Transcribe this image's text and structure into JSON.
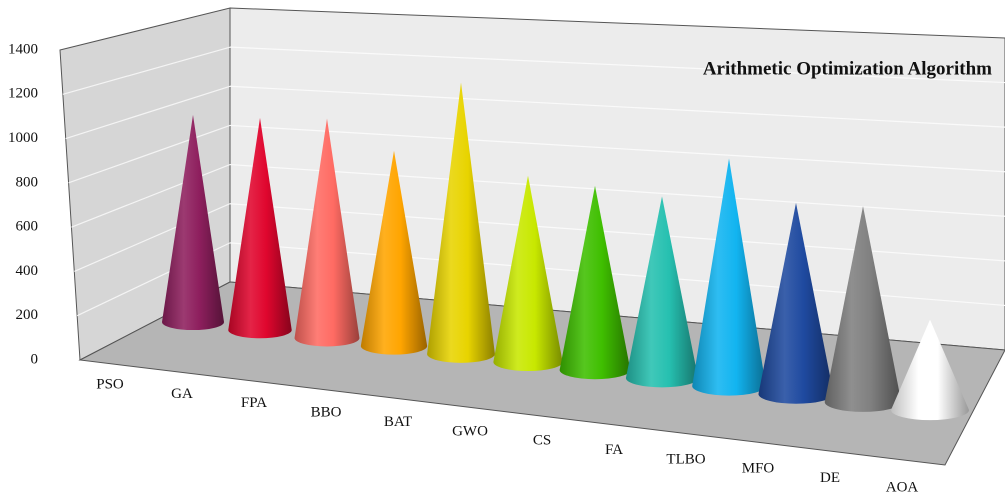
{
  "chart_data": {
    "type": "cone",
    "title": "Arithmetic Optimization Algorithm",
    "categories": [
      "PSO",
      "GA",
      "FPA",
      "BBO",
      "BAT",
      "GWO",
      "CS",
      "FA",
      "TLBO",
      "MFO",
      "DE",
      "AOA"
    ],
    "values": [
      950,
      960,
      980,
      860,
      1180,
      800,
      780,
      760,
      940,
      780,
      790,
      360
    ],
    "colors": [
      "#8e1f5e",
      "#e0062e",
      "#ff6b63",
      "#ffa500",
      "#e8d400",
      "#c8e800",
      "#3fbf00",
      "#26c0b0",
      "#12b4f0",
      "#1f4aa0",
      "#808080",
      "#ffffff"
    ],
    "ylim": [
      0,
      1400
    ],
    "yticks": [
      0,
      200,
      400,
      600,
      800,
      1000,
      1200,
      1400
    ],
    "grid": true
  }
}
